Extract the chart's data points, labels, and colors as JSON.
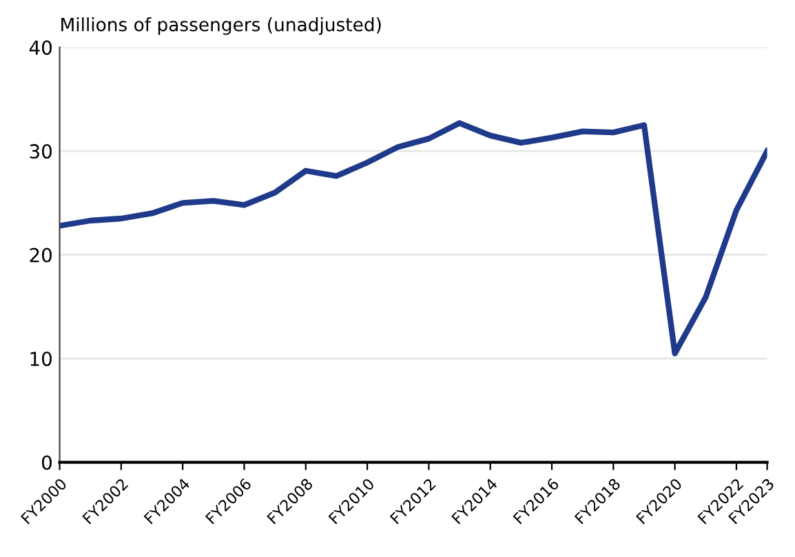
{
  "chart_data": {
    "type": "line",
    "ylabel": "Millions of passengers (unadjusted)",
    "categories": [
      "FY2000",
      null,
      "FY2002",
      null,
      "FY2004",
      null,
      "FY2006",
      null,
      "FY2008",
      null,
      "FY2010",
      null,
      "FY2012",
      null,
      "FY2014",
      null,
      "FY2016",
      null,
      "FY2018",
      null,
      "FY2020",
      null,
      "FY2022",
      "FY2023"
    ],
    "series": [
      {
        "color": "#1f3a8a",
        "values": [
          22.8,
          23.3,
          23.5,
          24.0,
          25.0,
          25.2,
          24.8,
          26.0,
          28.1,
          27.6,
          28.9,
          30.4,
          31.2,
          32.7,
          31.5,
          30.8,
          31.3,
          31.9,
          31.8,
          32.5,
          10.5,
          15.9,
          24.3,
          30.0
        ]
      }
    ],
    "ylim": [
      0,
      40
    ],
    "yticks": [
      0,
      10,
      20,
      30,
      40
    ],
    "grid": "y",
    "marker": "none",
    "line_style": "solid"
  }
}
